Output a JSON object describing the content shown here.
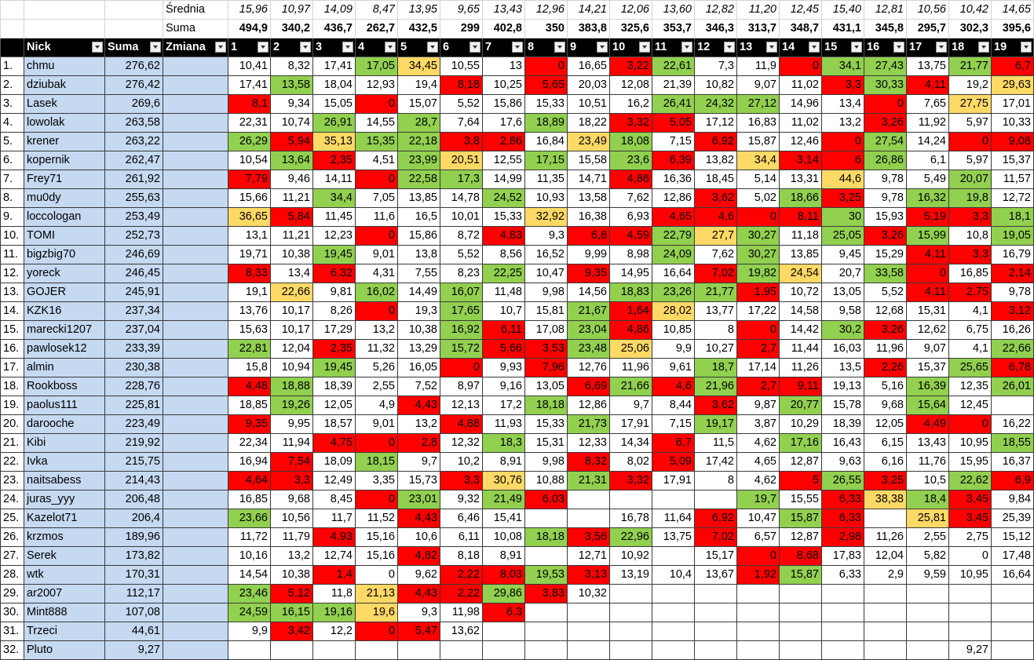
{
  "palette": {
    "r": "#ff0000",
    "g": "#92d050",
    "y": "#ffd966"
  },
  "top": [
    {
      "label": "Średnia",
      "italic": true,
      "bold": false,
      "values": [
        "15,96",
        "10,97",
        "14,09",
        "8,47",
        "13,95",
        "9,65",
        "13,43",
        "12,96",
        "14,21",
        "12,06",
        "13,60",
        "12,82",
        "11,20",
        "12,45",
        "15,40",
        "12,81",
        "10,56",
        "10,42",
        "14,65"
      ]
    },
    {
      "label": "Suma",
      "italic": false,
      "bold": true,
      "values": [
        "494,9",
        "340,2",
        "436,7",
        "262,7",
        "432,5",
        "299",
        "402,8",
        "350",
        "383,8",
        "325,6",
        "353,7",
        "346,3",
        "313,7",
        "348,7",
        "431,1",
        "345,8",
        "295,7",
        "302,3",
        "395,6"
      ]
    }
  ],
  "columns": [
    "Nick",
    "Suma",
    "Zmiana",
    "1",
    "2",
    "3",
    "4",
    "5",
    "6",
    "7",
    "8",
    "9",
    "10",
    "11",
    "12",
    "13",
    "14",
    "15",
    "16",
    "17",
    "18",
    "19"
  ],
  "rows": [
    {
      "rank": "1.",
      "nick": "chmu",
      "suma": "276,62",
      "fills": "...gy..r.rg..rgg.gr",
      "values": [
        "10,41",
        "8,32",
        "17,41",
        "17,05",
        "34,45",
        "10,55",
        "13",
        "0",
        "16,65",
        "3,22",
        "22,61",
        "7,3",
        "11,9",
        "0",
        "34,1",
        "27,43",
        "13,75",
        "21,77",
        "6,7"
      ]
    },
    {
      "rank": "2.",
      "nick": "dziubak",
      "suma": "276,42",
      "fills": ".g...r.r......rgr.y",
      "values": [
        "17,41",
        "13,58",
        "18,04",
        "12,93",
        "19,4",
        "8,18",
        "10,25",
        "5,65",
        "20,03",
        "12,08",
        "21,39",
        "10,82",
        "9,07",
        "11,02",
        "3,3",
        "30,33",
        "4,11",
        "19,2",
        "29,63"
      ]
    },
    {
      "rank": "3.",
      "nick": "Lasek",
      "suma": "269,6",
      "fills": "r..r......ggg..r.y.",
      "values": [
        "8,1",
        "9,34",
        "15,05",
        "0",
        "15,07",
        "5,52",
        "15,86",
        "15,33",
        "10,51",
        "16,2",
        "26,41",
        "24,32",
        "27,12",
        "14,96",
        "13,4",
        "0",
        "7,65",
        "27,75",
        "17,01"
      ]
    },
    {
      "rank": "4.",
      "nick": "lowolak",
      "suma": "263,58",
      "fills": "..g.g..g.rr....r...",
      "values": [
        "22,31",
        "10,74",
        "26,91",
        "14,55",
        "28,7",
        "7,64",
        "17,6",
        "18,89",
        "18,22",
        "3,32",
        "5,05",
        "17,12",
        "16,83",
        "11,02",
        "13,2",
        "3,26",
        "11,92",
        "5,97",
        "10,33"
      ]
    },
    {
      "rank": "5.",
      "nick": "krener",
      "suma": "263,22",
      "fills": "gryggrr.yg.r..rg.rr",
      "values": [
        "26,29",
        "5,94",
        "35,13",
        "15,35",
        "22,18",
        "3,8",
        "2,86",
        "16,84",
        "23,49",
        "18,08",
        "7,15",
        "6,92",
        "15,87",
        "12,46",
        "0",
        "27,54",
        "14,24",
        "0",
        "9,08"
      ]
    },
    {
      "rank": "6.",
      "nick": "kopernik",
      "suma": "262,47",
      "fills": ".gr.gy.g.gr.yrrg...",
      "values": [
        "10,54",
        "13,64",
        "2,35",
        "4,51",
        "23,99",
        "20,51",
        "12,55",
        "17,15",
        "15,58",
        "23,6",
        "6,39",
        "13,82",
        "34,4",
        "3,14",
        "6",
        "26,86",
        "6,1",
        "5,97",
        "15,37"
      ]
    },
    {
      "rank": "7.",
      "nick": "Frey71",
      "suma": "261,92",
      "fills": "r..rgg...r....y..g.",
      "values": [
        "7,79",
        "9,46",
        "14,11",
        "0",
        "22,58",
        "17,3",
        "14,99",
        "11,35",
        "14,71",
        "4,86",
        "16,36",
        "18,45",
        "5,14",
        "13,31",
        "44,6",
        "9,78",
        "5,49",
        "20,07",
        "11,57"
      ]
    },
    {
      "rank": "8.",
      "nick": "mu0dy",
      "suma": "255,63",
      "fills": "..g...g....r.gr.gg.",
      "values": [
        "15,66",
        "11,21",
        "34,4",
        "7,05",
        "13,85",
        "14,78",
        "24,52",
        "10,93",
        "13,58",
        "7,62",
        "12,86",
        "3,62",
        "5,02",
        "18,66",
        "3,25",
        "9,78",
        "16,32",
        "19,8",
        "12,72"
      ]
    },
    {
      "rank": "9.",
      "nick": "loccologan",
      "suma": "253,49",
      "fills": "yr.....y..rrrrg.rrg",
      "values": [
        "36,65",
        "5,84",
        "11,45",
        "11,6",
        "16,5",
        "10,01",
        "15,33",
        "32,92",
        "16,38",
        "6,93",
        "4,65",
        "4,6",
        "0",
        "8,11",
        "30",
        "15,93",
        "5,19",
        "3,3",
        "18,1"
      ]
    },
    {
      "rank": "10.",
      "nick": "TOMI",
      "suma": "252,73",
      "fills": "...r..r.rrgyg.grg.g",
      "values": [
        "13,1",
        "11,21",
        "12,23",
        "0",
        "15,86",
        "8,72",
        "4,83",
        "9,3",
        "6,8",
        "4,59",
        "22,79",
        "27,7",
        "30,27",
        "11,18",
        "25,05",
        "3,26",
        "15,99",
        "10,8",
        "19,05"
      ]
    },
    {
      "rank": "11.",
      "nick": "bigzbig70",
      "suma": "246,69",
      "fills": "..g.......g.g...rr.",
      "values": [
        "19,71",
        "10,38",
        "19,45",
        "9,01",
        "13,8",
        "5,52",
        "8,56",
        "16,52",
        "9,99",
        "8,98",
        "24,09",
        "7,62",
        "30,27",
        "13,85",
        "9,45",
        "15,29",
        "4,11",
        "3,3",
        "16,79"
      ]
    },
    {
      "rank": "12.",
      "nick": "yoreck",
      "suma": "246,45",
      "fills": "r.r...g.r..rgy.gr.r",
      "values": [
        "8,33",
        "13,4",
        "6,32",
        "4,31",
        "7,55",
        "8,23",
        "22,25",
        "10,47",
        "9,35",
        "14,95",
        "16,64",
        "7,02",
        "19,82",
        "24,54",
        "20,7",
        "33,58",
        "0",
        "16,85",
        "2,14"
      ]
    },
    {
      "rank": "13.",
      "nick": "GOJER",
      "suma": "245,91",
      "fills": ".y.g.g...gggr...rr.",
      "values": [
        "19,1",
        "22,66",
        "9,81",
        "16,02",
        "14,49",
        "16,07",
        "11,48",
        "9,98",
        "14,56",
        "18,83",
        "23,26",
        "21,77",
        "1,95",
        "10,72",
        "13,05",
        "5,52",
        "4,11",
        "2,75",
        "9,78"
      ]
    },
    {
      "rank": "14.",
      "nick": "KZK16",
      "suma": "237,34",
      "fills": "...r.g..gry.......r",
      "values": [
        "13,76",
        "10,17",
        "8,26",
        "0",
        "19,3",
        "17,65",
        "10,7",
        "15,81",
        "21,67",
        "1,64",
        "28,02",
        "13,77",
        "17,22",
        "14,58",
        "9,58",
        "12,68",
        "15,31",
        "4,1",
        "3,12"
      ]
    },
    {
      "rank": "15.",
      "nick": "marecki1207",
      "suma": "237,04",
      "fills": ".....gr.gr..r.gr...",
      "values": [
        "15,63",
        "10,17",
        "17,29",
        "13,2",
        "10,38",
        "16,92",
        "6,11",
        "17,08",
        "23,04",
        "4,86",
        "10,85",
        "8",
        "0",
        "14,42",
        "30,2",
        "3,26",
        "12,62",
        "6,75",
        "16,26"
      ]
    },
    {
      "rank": "16.",
      "nick": "pawlosek12",
      "suma": "233,39",
      "fills": "g.r..grrgy..r.....g",
      "values": [
        "22,81",
        "12,04",
        "2,35",
        "11,32",
        "13,29",
        "15,72",
        "5,66",
        "3,53",
        "23,48",
        "25,06",
        "9,9",
        "10,27",
        "2,7",
        "11,44",
        "16,03",
        "11,96",
        "9,07",
        "4,1",
        "22,66"
      ]
    },
    {
      "rank": "17.",
      "nick": "almin",
      "suma": "230,38",
      "fills": "..g..r.r...g...r.gr",
      "values": [
        "15,8",
        "10,94",
        "19,45",
        "5,26",
        "16,05",
        "0",
        "9,93",
        "7,96",
        "12,76",
        "11,96",
        "9,61",
        "18,7",
        "17,14",
        "11,26",
        "13,5",
        "2,26",
        "15,37",
        "25,65",
        "6,78"
      ]
    },
    {
      "rank": "18.",
      "nick": "Rookboss",
      "suma": "228,76",
      "fills": "rg......rgrgrr..g.g",
      "values": [
        "4,48",
        "18,88",
        "18,39",
        "2,55",
        "7,52",
        "8,97",
        "9,16",
        "13,05",
        "6,69",
        "21,66",
        "4,6",
        "21,96",
        "2,7",
        "9,11",
        "19,13",
        "5,16",
        "16,39",
        "12,35",
        "26,01"
      ]
    },
    {
      "rank": "19.",
      "nick": "paolus111",
      "suma": "225,81",
      "fills": ".g..r..g...r.g..g..",
      "values": [
        "18,85",
        "19,26",
        "12,05",
        "4,9",
        "4,43",
        "12,13",
        "17,2",
        "18,18",
        "12,86",
        "9,7",
        "8,44",
        "3,62",
        "9,87",
        "20,77",
        "15,78",
        "9,68",
        "15,64",
        "12,45",
        null
      ]
    },
    {
      "rank": "20.",
      "nick": "darooche",
      "suma": "223,49",
      "fills": "r....r..g..g....rr.",
      "values": [
        "9,35",
        "9,95",
        "18,57",
        "9,01",
        "13,2",
        "4,88",
        "11,93",
        "15,33",
        "21,73",
        "17,91",
        "7,15",
        "19,17",
        "3,87",
        "10,29",
        "18,39",
        "12,05",
        "4,49",
        "0",
        "16,22"
      ]
    },
    {
      "rank": "21.",
      "nick": "Kibi",
      "suma": "219,92",
      "fills": "..rrr.g...r..g....g",
      "values": [
        "22,34",
        "11,94",
        "4,75",
        "0",
        "2,8",
        "12,32",
        "18,3",
        "15,31",
        "12,33",
        "14,34",
        "6,7",
        "11,5",
        "4,62",
        "17,16",
        "16,43",
        "6,15",
        "13,43",
        "10,95",
        "18,55"
      ]
    },
    {
      "rank": "22.",
      "nick": "Ivka",
      "suma": "215,75",
      "fills": ".r.g....r.r........",
      "values": [
        "16,94",
        "7,54",
        "18,09",
        "18,15",
        "9,7",
        "10,2",
        "8,91",
        "9,98",
        "8,32",
        "8,02",
        "5,09",
        "17,42",
        "4,65",
        "12,87",
        "9,63",
        "6,16",
        "11,76",
        "15,95",
        "16,37"
      ]
    },
    {
      "rank": "23.",
      "nick": "naitsabess",
      "suma": "214,43",
      "fills": "rr...ry.gr...rgr.gr",
      "values": [
        "4,64",
        "3,3",
        "12,49",
        "3,35",
        "15,73",
        "3,3",
        "30,76",
        "10,88",
        "21,31",
        "3,32",
        "17,91",
        "8",
        "4,62",
        "5",
        "26,55",
        "3,25",
        "10,5",
        "22,62",
        "6,9"
      ]
    },
    {
      "rank": "24.",
      "nick": "juras_yyy",
      "suma": "206,48",
      "fills": "...rg.gr....g.rygr.",
      "values": [
        "16,85",
        "9,68",
        "8,45",
        "0",
        "23,01",
        "9,32",
        "21,49",
        "6,03",
        null,
        null,
        null,
        null,
        "19,7",
        "15,55",
        "6,33",
        "38,38",
        "18,4",
        "3,45",
        "9,84"
      ]
    },
    {
      "rank": "25.",
      "nick": "Kazelot71",
      "suma": "206,4",
      "fills": "g...r......r.gr.yr.",
      "values": [
        "23,66",
        "10,56",
        "11,7",
        "11,52",
        "4,43",
        "6,46",
        "15,41",
        null,
        null,
        "16,78",
        "11,64",
        "6,92",
        "10,47",
        "15,87",
        "6,33",
        null,
        "25,81",
        "3,45",
        "25,39"
      ]
    },
    {
      "rank": "26.",
      "nick": "krzmos",
      "suma": "189,96",
      "fills": "..r....grg.r..r....",
      "values": [
        "11,72",
        "11,79",
        "4,93",
        "15,16",
        "10,6",
        "6,11",
        "10,08",
        "18,18",
        "3,56",
        "22,96",
        "13,75",
        "7,02",
        "6,57",
        "12,87",
        "2,98",
        "11,26",
        "2,55",
        "2,75",
        "15,12"
      ]
    },
    {
      "rank": "27.",
      "nick": "Serek",
      "suma": "173,82",
      "fills": "....r.......rr.....",
      "values": [
        "10,16",
        "13,2",
        "12,74",
        "15,16",
        "4,82",
        "8,18",
        "8,91",
        null,
        "12,71",
        "10,92",
        null,
        "15,17",
        "0",
        "8,68",
        "17,83",
        "12,04",
        "5,82",
        "0",
        "17,48"
      ]
    },
    {
      "rank": "28.",
      "nick": "wtk",
      "suma": "170,31",
      "fills": "..r..rrgr...rg.....",
      "values": [
        "14,54",
        "10,38",
        "1,4",
        "0",
        "9,62",
        "2,22",
        "8,03",
        "19,53",
        "3,13",
        "13,19",
        "10,4",
        "13,67",
        "1,92",
        "15,87",
        "6,33",
        "2,9",
        "9,59",
        "10,95",
        "16,64"
      ]
    },
    {
      "rank": "29.",
      "nick": "ar2007",
      "suma": "112,17",
      "fills": "gr.yrrgr...........",
      "values": [
        "23,46",
        "5,12",
        "11,8",
        "21,13",
        "4,43",
        "2,22",
        "29,86",
        "3,83",
        "10,32",
        null,
        null,
        null,
        null,
        null,
        null,
        null,
        null,
        null,
        null
      ]
    },
    {
      "rank": "30.",
      "nick": "Mint888",
      "suma": "107,08",
      "fills": "gggy..r............",
      "values": [
        "24,59",
        "16,15",
        "19,16",
        "19,6",
        "9,3",
        "11,98",
        "6,3",
        null,
        null,
        null,
        null,
        null,
        null,
        null,
        null,
        null,
        null,
        null,
        null
      ]
    },
    {
      "rank": "31.",
      "nick": "Trzeci",
      "suma": "44,61",
      "fills": ".r.rr..............",
      "values": [
        "9,9",
        "3,42",
        "12,2",
        "0",
        "5,47",
        "13,62",
        null,
        null,
        null,
        null,
        null,
        null,
        null,
        null,
        null,
        null,
        null,
        null,
        null
      ]
    },
    {
      "rank": "32.",
      "nick": "Pluto",
      "suma": "9,27",
      "fills": "...................",
      "values": [
        null,
        null,
        null,
        null,
        null,
        null,
        null,
        null,
        null,
        null,
        null,
        null,
        null,
        null,
        null,
        null,
        null,
        "9,27",
        null
      ]
    }
  ]
}
